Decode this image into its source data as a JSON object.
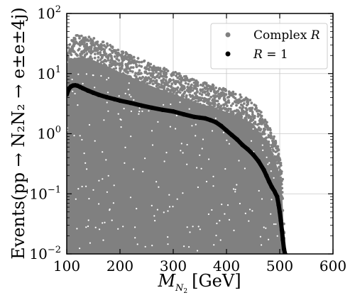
{
  "chart_data": {
    "type": "scatter",
    "xlabel": {
      "main": "M",
      "sub": "N",
      "subsub": "2",
      "unit": "[GeV]"
    },
    "ylabel": "Events(pp → N₂N₂ → e±e±4j)",
    "xlim": [
      100,
      600
    ],
    "ylim": [
      0.01,
      100
    ],
    "yscale": "log",
    "grid": true,
    "legend_position": "top-right",
    "x_ticks": [
      100,
      200,
      300,
      400,
      500,
      600
    ],
    "x_tick_labels": [
      "100",
      "200",
      "300",
      "400",
      "500",
      "600"
    ],
    "y_ticks": [
      0.01,
      0.1,
      1,
      10,
      100
    ],
    "y_tick_labels": [
      {
        "base": "10",
        "exp": "−2"
      },
      {
        "base": "10",
        "exp": "−1"
      },
      {
        "base": "10",
        "exp": "0"
      },
      {
        "base": "10",
        "exp": "1"
      },
      {
        "base": "10",
        "exp": "2"
      }
    ],
    "series": [
      {
        "name": "Complex R",
        "color": "#808080",
        "upper_envelope": {
          "x": [
            100,
            110,
            125,
            150,
            175,
            200,
            225,
            250,
            275,
            300,
            325,
            350,
            375,
            400,
            425,
            450,
            470,
            480,
            490,
            500,
            505,
            510
          ],
          "y": [
            35,
            42,
            45,
            40,
            32,
            25,
            20,
            16,
            13,
            11,
            9,
            7.5,
            6.5,
            5.5,
            4.5,
            3.5,
            2.0,
            1.4,
            0.9,
            0.5,
            0.25,
            0.01
          ]
        }
      },
      {
        "name": "R = 1",
        "color": "#000000",
        "x": [
          100,
          104,
          108,
          112,
          116,
          120,
          125,
          130,
          140,
          150,
          160,
          175,
          190,
          200,
          220,
          240,
          260,
          280,
          300,
          320,
          340,
          350,
          360,
          370,
          380,
          390,
          400,
          410,
          420,
          430,
          440,
          450,
          460,
          470,
          475,
          480,
          485,
          490,
          495,
          498,
          500,
          502,
          504,
          506,
          508,
          510
        ],
        "y": [
          4.5,
          5.6,
          6.1,
          6.35,
          6.4,
          6.3,
          6.0,
          5.7,
          5.2,
          4.8,
          4.45,
          4.05,
          3.75,
          3.55,
          3.25,
          2.95,
          2.7,
          2.5,
          2.35,
          2.1,
          1.9,
          1.85,
          1.8,
          1.68,
          1.55,
          1.35,
          1.13,
          0.95,
          0.8,
          0.65,
          0.55,
          0.45,
          0.35,
          0.25,
          0.2,
          0.16,
          0.13,
          0.11,
          0.09,
          0.065,
          0.05,
          0.036,
          0.025,
          0.017,
          0.012,
          0.01
        ]
      }
    ],
    "legend": [
      {
        "label": "Complex ",
        "italic": "R",
        "color": "#808080"
      },
      {
        "label": " = 1",
        "italic": "R",
        "color": "#000000",
        "italic_first": true
      }
    ]
  }
}
